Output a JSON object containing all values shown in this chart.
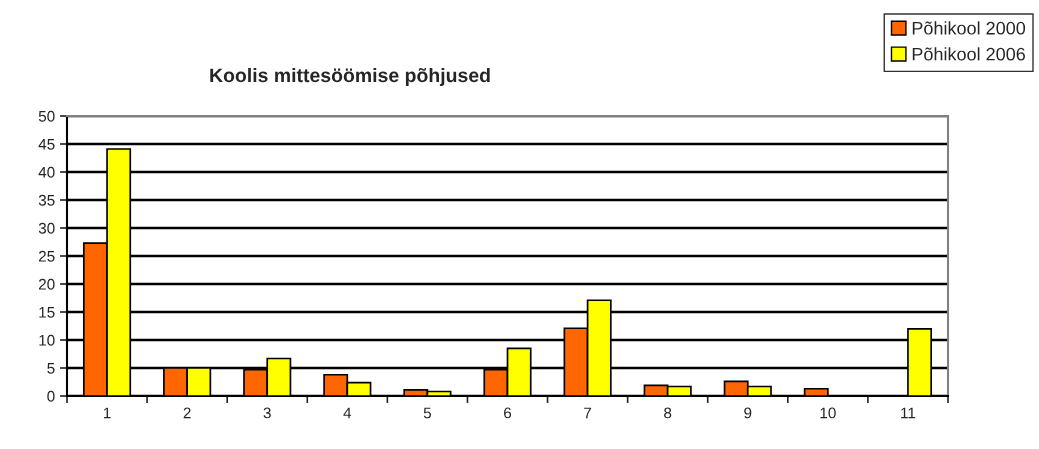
{
  "chart_data": {
    "type": "bar",
    "title": "Koolis mittesöömise põhjused",
    "categories": [
      "1",
      "2",
      "3",
      "4",
      "5",
      "6",
      "7",
      "8",
      "9",
      "10",
      "11"
    ],
    "series": [
      {
        "name": "Põhikool 2000",
        "color": "#ff6600",
        "values": [
          27.3,
          5.0,
          4.7,
          3.8,
          1.1,
          4.7,
          12.1,
          1.9,
          2.6,
          1.3,
          null
        ]
      },
      {
        "name": "Põhikool 2006",
        "color": "#ffff00",
        "values": [
          44.1,
          5.0,
          6.7,
          2.4,
          0.8,
          8.5,
          17.1,
          1.7,
          1.7,
          null,
          12.0
        ]
      }
    ],
    "ylim": [
      0,
      50
    ],
    "yticks": [
      0,
      5,
      10,
      15,
      20,
      25,
      30,
      35,
      40,
      45,
      50
    ],
    "grid": "y",
    "legend": "top right"
  }
}
